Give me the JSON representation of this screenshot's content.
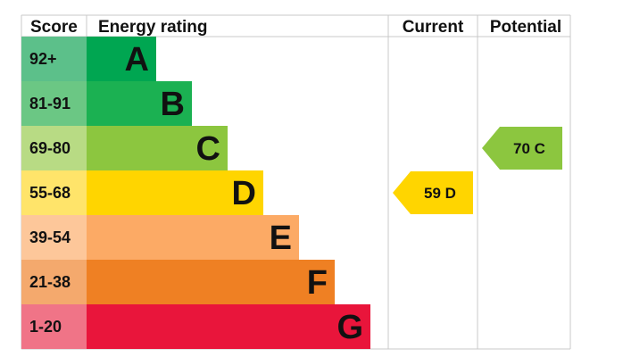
{
  "header": {
    "score": "Score",
    "energy_rating": "Energy rating",
    "current": "Current",
    "potential": "Potential"
  },
  "chart_data": {
    "type": "bar",
    "bands": [
      {
        "letter": "A",
        "range": "92+",
        "min": 92,
        "max": 100,
        "color": "#00a651",
        "score_color": "#5cc08a"
      },
      {
        "letter": "B",
        "range": "81-91",
        "min": 81,
        "max": 91,
        "color": "#1bb152",
        "score_color": "#6bc784"
      },
      {
        "letter": "C",
        "range": "69-80",
        "min": 69,
        "max": 80,
        "color": "#8cc63f",
        "score_color": "#b8db84"
      },
      {
        "letter": "D",
        "range": "55-68",
        "min": 55,
        "max": 68,
        "color": "#ffd500",
        "score_color": "#ffe46a"
      },
      {
        "letter": "E",
        "range": "39-54",
        "min": 39,
        "max": 54,
        "color": "#fcaa65",
        "score_color": "#fdc79a"
      },
      {
        "letter": "F",
        "range": "21-38",
        "min": 21,
        "max": 38,
        "color": "#ef8023",
        "score_color": "#f4a96d"
      },
      {
        "letter": "G",
        "range": "1-20",
        "min": 1,
        "max": 20,
        "color": "#e9153b",
        "score_color": "#f07487"
      }
    ],
    "current": {
      "value": 59,
      "letter": "D",
      "label": "59 D",
      "color": "#ffd500"
    },
    "potential": {
      "value": 70,
      "letter": "C",
      "label": "70 C",
      "color": "#8cc63f"
    }
  }
}
